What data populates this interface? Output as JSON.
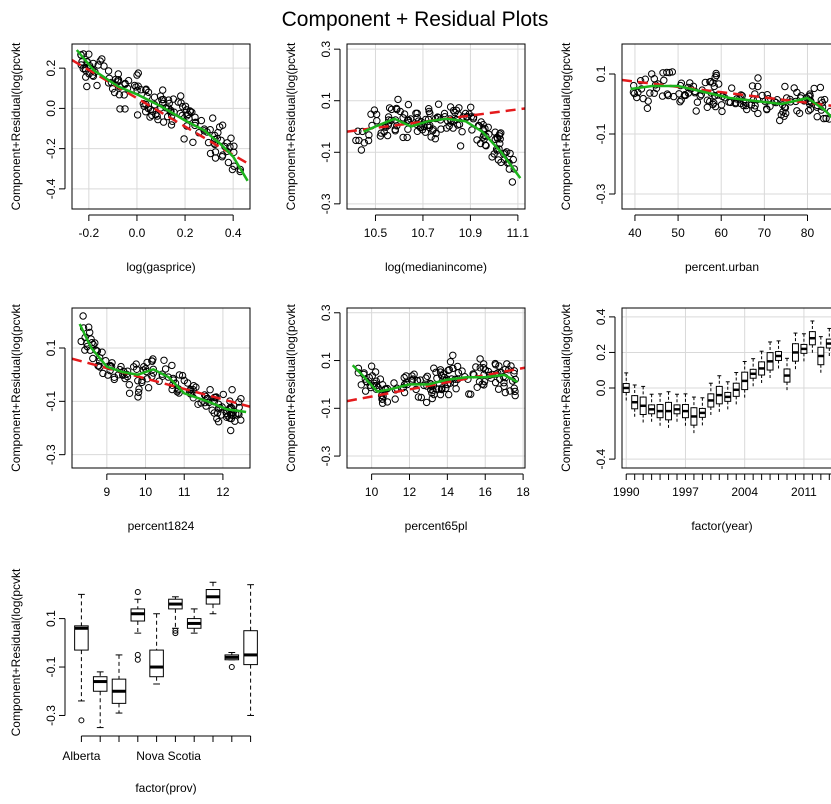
{
  "figure": {
    "title": "Component + Residual Plots"
  },
  "chart_data": [
    {
      "type": "scatter",
      "xlabel": "log(gasprice)",
      "ylabel": "Component+Residual(log(pcvkt",
      "xlim": [
        -0.27,
        0.47
      ],
      "ylim": [
        -0.5,
        0.32
      ],
      "xticks": [
        -0.2,
        0.0,
        0.2,
        0.4
      ],
      "xtick_labels": [
        "-0.2",
        "0.0",
        "0.2",
        "0.4"
      ],
      "yticks": [
        -0.4,
        -0.2,
        0.0,
        0.2
      ],
      "ytick_labels": [
        "-0.4",
        "-0.2",
        "0.0",
        "0.2"
      ],
      "grid": true,
      "points_summary": "dense cloud of ~300 open-circle residuals following a declining trend",
      "fit_line": {
        "name": "linear fit",
        "color": "#e41a1c",
        "dash": true,
        "points": [
          [
            -0.27,
            0.24
          ],
          [
            0.47,
            -0.28
          ]
        ]
      },
      "smooth_line": {
        "name": "smoother",
        "color": "#1cb31c",
        "points": [
          [
            -0.25,
            0.29
          ],
          [
            -0.18,
            0.19
          ],
          [
            -0.08,
            0.11
          ],
          [
            0.0,
            0.07
          ],
          [
            0.1,
            0.01
          ],
          [
            0.2,
            -0.06
          ],
          [
            0.28,
            -0.11
          ],
          [
            0.35,
            -0.18
          ],
          [
            0.4,
            -0.24
          ],
          [
            0.46,
            -0.36
          ]
        ]
      }
    },
    {
      "type": "scatter",
      "xlabel": "log(medianincome)",
      "ylabel": "Component+Residual(log(pcvkt",
      "xlim": [
        10.38,
        11.13
      ],
      "ylim": [
        -0.32,
        0.32
      ],
      "xticks": [
        10.5,
        10.7,
        10.9,
        11.1
      ],
      "xtick_labels": [
        "10.5",
        "10.7",
        "10.9",
        "11.1"
      ],
      "yticks": [
        -0.3,
        -0.1,
        0.1,
        0.3
      ],
      "ytick_labels": [
        "-0.3",
        "-0.1",
        "0.1",
        "0.3"
      ],
      "grid": true,
      "fit_line": {
        "color": "#e41a1c",
        "dash": true,
        "points": [
          [
            10.38,
            -0.02
          ],
          [
            11.13,
            0.07
          ]
        ]
      },
      "smooth_line": {
        "color": "#1cb31c",
        "points": [
          [
            10.45,
            -0.02
          ],
          [
            10.5,
            0.0
          ],
          [
            10.58,
            0.03
          ],
          [
            10.65,
            0.0
          ],
          [
            10.72,
            0.02
          ],
          [
            10.8,
            0.03
          ],
          [
            10.88,
            0.02
          ],
          [
            10.95,
            -0.02
          ],
          [
            11.03,
            -0.1
          ],
          [
            11.11,
            -0.2
          ]
        ]
      }
    },
    {
      "type": "scatter",
      "xlabel": "percent.urban",
      "ylabel": "Component+Residual(log(pcvkt",
      "xlim": [
        37,
        88
      ],
      "ylim": [
        -0.35,
        0.2
      ],
      "xticks": [
        40,
        50,
        60,
        70,
        80
      ],
      "xtick_labels": [
        "40",
        "50",
        "60",
        "70",
        "80"
      ],
      "yticks": [
        -0.3,
        -0.1,
        0.1
      ],
      "ytick_labels": [
        "-0.3",
        "-0.1",
        "0.1"
      ],
      "grid": true,
      "fit_line": {
        "color": "#e41a1c",
        "dash": true,
        "points": [
          [
            37,
            0.08
          ],
          [
            88,
            -0.01
          ]
        ]
      },
      "smooth_line": {
        "color": "#1cb31c",
        "points": [
          [
            39,
            0.05
          ],
          [
            44,
            0.06
          ],
          [
            50,
            0.06
          ],
          [
            56,
            0.04
          ],
          [
            62,
            0.02
          ],
          [
            68,
            0.01
          ],
          [
            74,
            0.0
          ],
          [
            80,
            0.02
          ],
          [
            84,
            -0.02
          ],
          [
            88,
            -0.08
          ]
        ]
      }
    },
    {
      "type": "scatter",
      "xlabel": "percent1824",
      "ylabel": "Component+Residual(log(pcvkt",
      "xlim": [
        8.1,
        12.7
      ],
      "ylim": [
        -0.35,
        0.25
      ],
      "xticks": [
        9,
        10,
        11,
        12
      ],
      "xtick_labels": [
        "9",
        "10",
        "11",
        "12"
      ],
      "yticks": [
        -0.3,
        -0.1,
        0.1
      ],
      "ytick_labels": [
        "-0.3",
        "-0.1",
        "0.1"
      ],
      "grid": true,
      "fit_line": {
        "color": "#e41a1c",
        "dash": true,
        "points": [
          [
            8.1,
            0.06
          ],
          [
            12.7,
            -0.12
          ]
        ]
      },
      "smooth_line": {
        "color": "#1cb31c",
        "points": [
          [
            8.3,
            0.19
          ],
          [
            8.6,
            0.1
          ],
          [
            9.0,
            0.03
          ],
          [
            9.4,
            0.01
          ],
          [
            9.8,
            0.0
          ],
          [
            10.2,
            0.02
          ],
          [
            10.6,
            -0.01
          ],
          [
            11.0,
            -0.07
          ],
          [
            11.6,
            -0.1
          ],
          [
            12.1,
            -0.13
          ],
          [
            12.6,
            -0.14
          ]
        ]
      }
    },
    {
      "type": "scatter",
      "xlabel": "percent65pl",
      "ylabel": "Component+Residual(log(pcvkt",
      "xlim": [
        8.7,
        18.1
      ],
      "ylim": [
        -0.35,
        0.32
      ],
      "xticks": [
        10,
        12,
        14,
        16,
        18
      ],
      "xtick_labels": [
        "10",
        "12",
        "14",
        "16",
        "18"
      ],
      "yticks": [
        -0.3,
        -0.1,
        0.1,
        0.3
      ],
      "ytick_labels": [
        "-0.3",
        "-0.1",
        "0.1",
        "0.3"
      ],
      "grid": true,
      "fit_line": {
        "color": "#e41a1c",
        "dash": true,
        "points": [
          [
            8.7,
            -0.07
          ],
          [
            18.1,
            0.07
          ]
        ]
      },
      "smooth_line": {
        "color": "#1cb31c",
        "points": [
          [
            9.0,
            0.08
          ],
          [
            9.5,
            0.04
          ],
          [
            10.3,
            -0.03
          ],
          [
            11.0,
            -0.02
          ],
          [
            12.0,
            0.0
          ],
          [
            13.0,
            0.0
          ],
          [
            14.0,
            0.02
          ],
          [
            15.0,
            0.03
          ],
          [
            16.0,
            0.03
          ],
          [
            17.0,
            0.04
          ],
          [
            17.7,
            0.01
          ]
        ]
      }
    },
    {
      "type": "box",
      "xlabel": "factor(year)",
      "ylabel": "Component+Residual(log(pcvkt",
      "ylim": [
        -0.45,
        0.45
      ],
      "categories_count": 26,
      "xtick_labels": [
        "1990",
        "1997",
        "2004",
        "2011"
      ],
      "xtick_positions": [
        1,
        8,
        15,
        22
      ],
      "yticks": [
        -0.4,
        0.0,
        0.2,
        0.4
      ],
      "ytick_labels": [
        "-0.4",
        "0.0",
        "0.2",
        "0.4"
      ],
      "grid": true,
      "medians": [
        0.0,
        -0.08,
        -0.1,
        -0.12,
        -0.13,
        -0.13,
        -0.12,
        -0.13,
        -0.16,
        -0.14,
        -0.07,
        -0.04,
        -0.05,
        -0.01,
        0.04,
        0.08,
        0.11,
        0.15,
        0.18,
        0.07,
        0.2,
        0.22,
        0.28,
        0.18,
        0.25,
        0.28
      ]
    },
    {
      "type": "box",
      "xlabel": "factor(prov)",
      "ylabel": "Component+Residual(log(pcvkt",
      "ylim": [
        -0.36,
        0.28
      ],
      "categories_count": 10,
      "xtick_labels": [
        "Alberta",
        "Nova Scotia"
      ],
      "yticks": [
        -0.3,
        -0.1,
        0.1
      ],
      "ytick_labels": [
        "-0.3",
        "-0.1",
        "0.1"
      ],
      "grid": false,
      "boxes": [
        {
          "min": -0.24,
          "q1": -0.03,
          "median": 0.06,
          "q3": 0.07,
          "max": 0.2,
          "outliers": [
            -0.32
          ]
        },
        {
          "min": -0.35,
          "q1": -0.2,
          "median": -0.16,
          "q3": -0.14,
          "max": -0.12,
          "outliers": []
        },
        {
          "min": -0.29,
          "q1": -0.25,
          "median": -0.2,
          "q3": -0.15,
          "max": -0.05,
          "outliers": []
        },
        {
          "min": 0.04,
          "q1": 0.09,
          "median": 0.12,
          "q3": 0.14,
          "max": 0.18,
          "outliers": [
            0.21,
            -0.05,
            -0.07
          ]
        },
        {
          "min": -0.17,
          "q1": -0.14,
          "median": -0.1,
          "q3": -0.03,
          "max": 0.12,
          "outliers": []
        },
        {
          "min": 0.06,
          "q1": 0.14,
          "median": 0.16,
          "q3": 0.18,
          "max": 0.19,
          "outliers": [
            0.05,
            0.04
          ]
        },
        {
          "min": 0.04,
          "q1": 0.06,
          "median": 0.08,
          "q3": 0.1,
          "max": 0.14,
          "outliers": []
        },
        {
          "min": 0.12,
          "q1": 0.16,
          "median": 0.19,
          "q3": 0.22,
          "max": 0.25,
          "outliers": []
        },
        {
          "min": -0.07,
          "q1": -0.07,
          "median": -0.06,
          "q3": -0.05,
          "max": -0.04,
          "outliers": [
            -0.1
          ]
        },
        {
          "min": -0.3,
          "q1": -0.09,
          "median": -0.05,
          "q3": 0.05,
          "max": 0.24,
          "outliers": []
        }
      ]
    }
  ]
}
